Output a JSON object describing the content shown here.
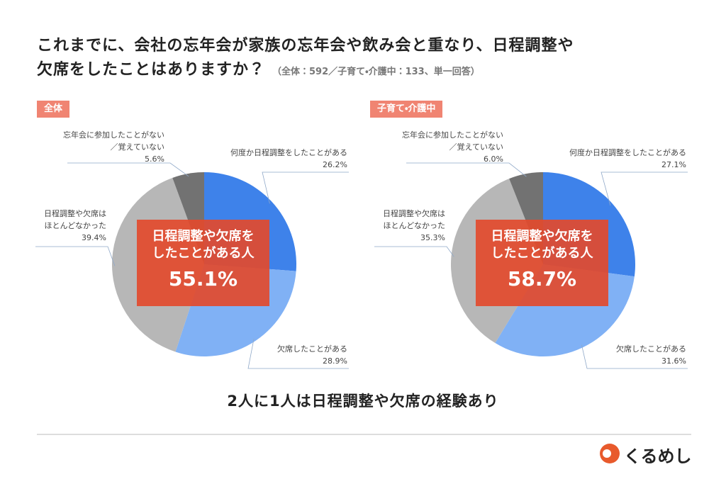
{
  "header": {
    "title_lines": [
      "これまでに、会社の忘年会が家族の忘年会や飲み会と重なり、日程調整や",
      "欠席をしたことはありますか？"
    ],
    "subtitle": "（全体：592／子育て・介護中：133、単一回答）"
  },
  "chart_data": [
    {
      "type": "pie",
      "title": "全体",
      "categories": [
        "何度か日程調整をしたことがある",
        "欠席したことがある",
        "日程調整や欠席は\nほとんどなかった",
        "忘年会に参加したことがない\n／覚えていない"
      ],
      "values": [
        26.2,
        28.9,
        39.4,
        5.6
      ],
      "value_labels": [
        "26.2%",
        "28.9%",
        "39.4%",
        "5.6%"
      ],
      "colors": [
        "#3e82ea",
        "#80b1f5",
        "#b7b7b7",
        "#727272"
      ],
      "callout": [
        "日程調整や欠席を",
        "したことがある人",
        "55.1%"
      ]
    },
    {
      "type": "pie",
      "title": "子育て・介護中",
      "categories": [
        "何度か日程調整をしたことがある",
        "欠席したことがある",
        "日程調整や欠席は\nほとんどなかった",
        "忘年会に参加したことがない\n／覚えていない"
      ],
      "values": [
        27.1,
        31.6,
        35.3,
        6.0
      ],
      "value_labels": [
        "27.1%",
        "31.6%",
        "35.3%",
        "6.0%"
      ],
      "colors": [
        "#3e82ea",
        "#80b1f5",
        "#b7b7b7",
        "#727272"
      ],
      "callout": [
        "日程調整や欠席を",
        "したことがある人",
        "58.7%"
      ]
    }
  ],
  "footer": "2人に1人は日程調整や欠席の経験あり",
  "logo": "くるめし"
}
